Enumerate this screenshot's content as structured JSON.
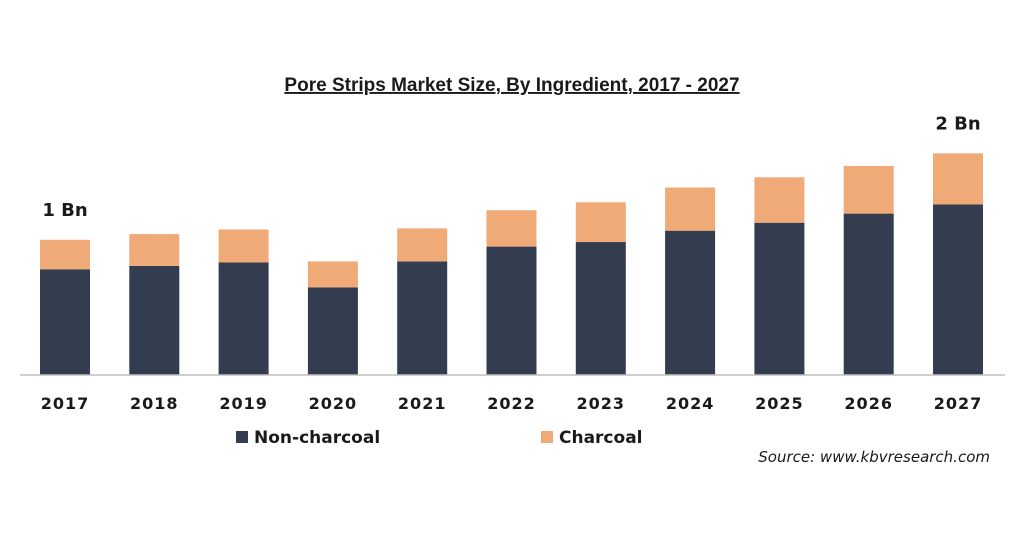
{
  "chart_data": {
    "type": "bar",
    "stacked": true,
    "title": "Pore Strips Market Size, By Ingredient, 2017 - 2027",
    "xlabel": "",
    "ylabel": "",
    "ylim": [
      0,
      2.2
    ],
    "categories": [
      "2017",
      "2018",
      "2019",
      "2020",
      "2021",
      "2022",
      "2023",
      "2024",
      "2025",
      "2026",
      "2027"
    ],
    "series": [
      {
        "name": "Non-charcoal",
        "color": "#333d4f",
        "values": [
          0.93,
          0.96,
          0.99,
          0.77,
          1.0,
          1.13,
          1.17,
          1.27,
          1.34,
          1.42,
          1.5
        ]
      },
      {
        "name": "Charcoal",
        "color": "#f0aa77",
        "values": [
          0.26,
          0.28,
          0.29,
          0.23,
          0.29,
          0.32,
          0.35,
          0.38,
          0.4,
          0.42,
          0.45
        ]
      }
    ],
    "annotations": [
      {
        "category": "2017",
        "text": "1 Bn"
      },
      {
        "category": "2027",
        "text": "2 Bn"
      }
    ],
    "legend_position": "bottom-left",
    "grid": false,
    "source": "Source: www.kbvresearch.com"
  }
}
